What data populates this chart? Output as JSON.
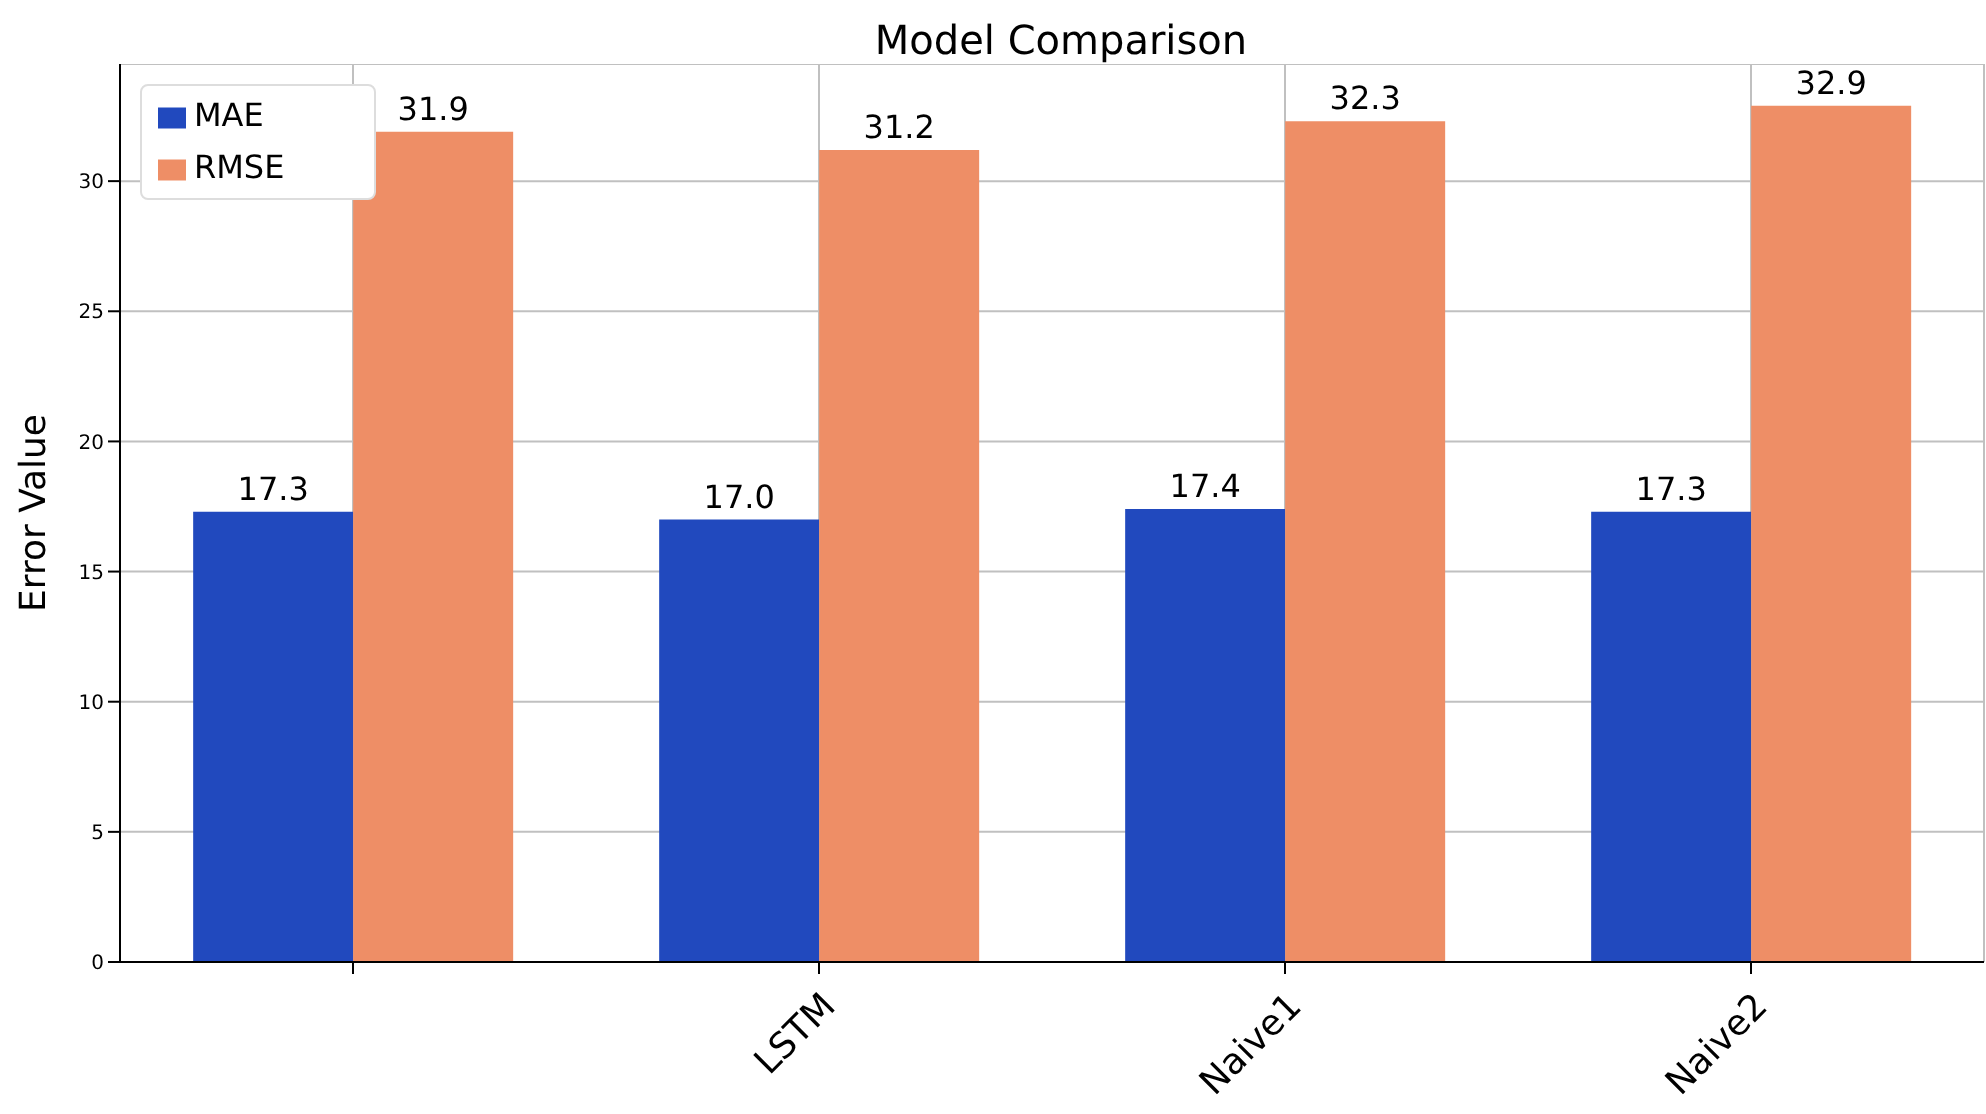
{
  "chart_data": {
    "type": "bar",
    "title": "Model Comparison",
    "ylabel": "Error Value",
    "categories": [
      null,
      "LSTM",
      "Naive1",
      "Naive2"
    ],
    "series": [
      {
        "name": "MAE",
        "color": "#2149be",
        "values": [
          17.3,
          17.0,
          17.4,
          17.3
        ],
        "value_labels": [
          "17.3",
          "17.0",
          "17.4",
          "17.3"
        ]
      },
      {
        "name": "RMSE",
        "color": "#ee8e66",
        "values": [
          31.9,
          31.2,
          32.3,
          32.9
        ],
        "value_labels": [
          "31.9",
          "31.2",
          "32.3",
          "32.9"
        ]
      }
    ],
    "ylim": [
      0,
      34.5
    ],
    "yticks": [
      0,
      5,
      10,
      15,
      20,
      25,
      30
    ],
    "grid": true,
    "legend": "top left"
  }
}
